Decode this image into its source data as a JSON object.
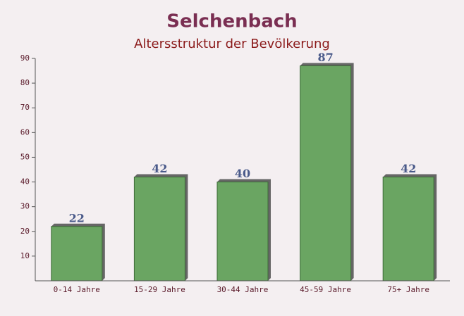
{
  "chart_data": {
    "type": "bar",
    "title": "Selchenbach",
    "subtitle": "Altersstruktur der Bevölkerung",
    "categories": [
      "0-14 Jahre",
      "15-29 Jahre",
      "30-44 Jahre",
      "45-59 Jahre",
      "75+ Jahre"
    ],
    "values": [
      22,
      42,
      40,
      87,
      42
    ],
    "color": "#6aa562",
    "ylim": [
      0,
      90
    ],
    "yticks": [
      10,
      20,
      30,
      40,
      50,
      60,
      70,
      80,
      90
    ],
    "grid": false
  }
}
